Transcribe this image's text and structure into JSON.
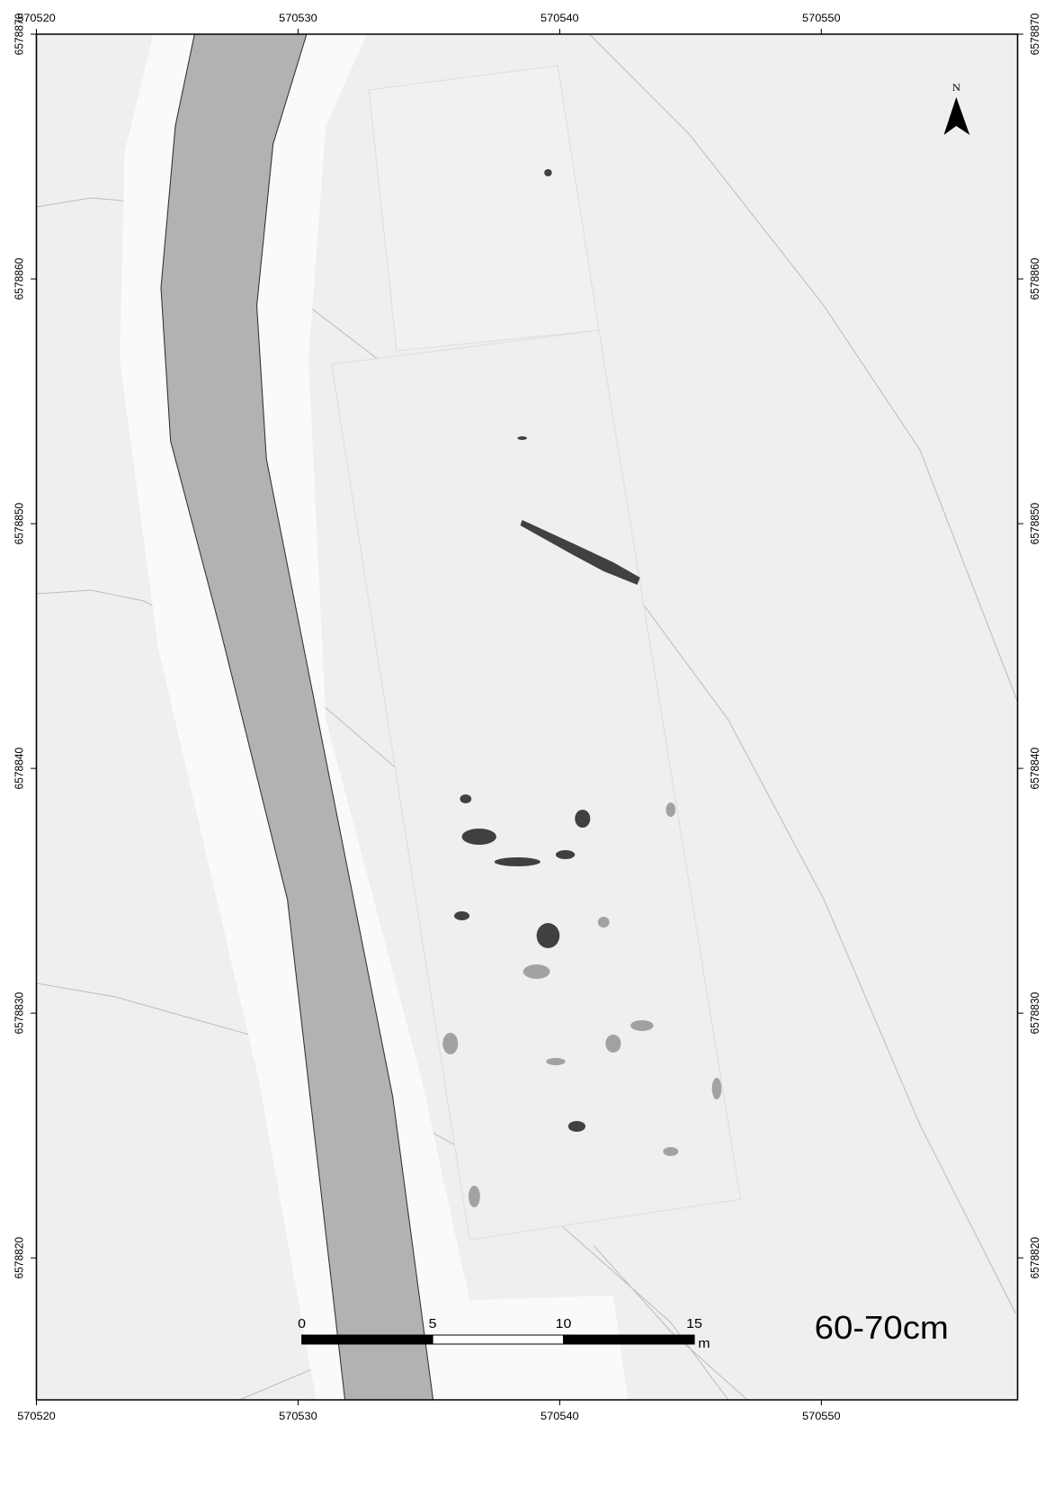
{
  "map": {
    "label": "60-70cm",
    "north": "N",
    "xlim": [
      570520,
      570557.5
    ],
    "ylim": [
      6578814.2,
      6578870
    ],
    "xticks": [
      570520,
      570530,
      570540,
      570550
    ],
    "yticks": [
      6578820,
      6578830,
      6578840,
      6578850,
      6578860,
      6578870
    ],
    "scale_bar": {
      "ticks": [
        0,
        5,
        10,
        15
      ],
      "unit": "m"
    }
  }
}
